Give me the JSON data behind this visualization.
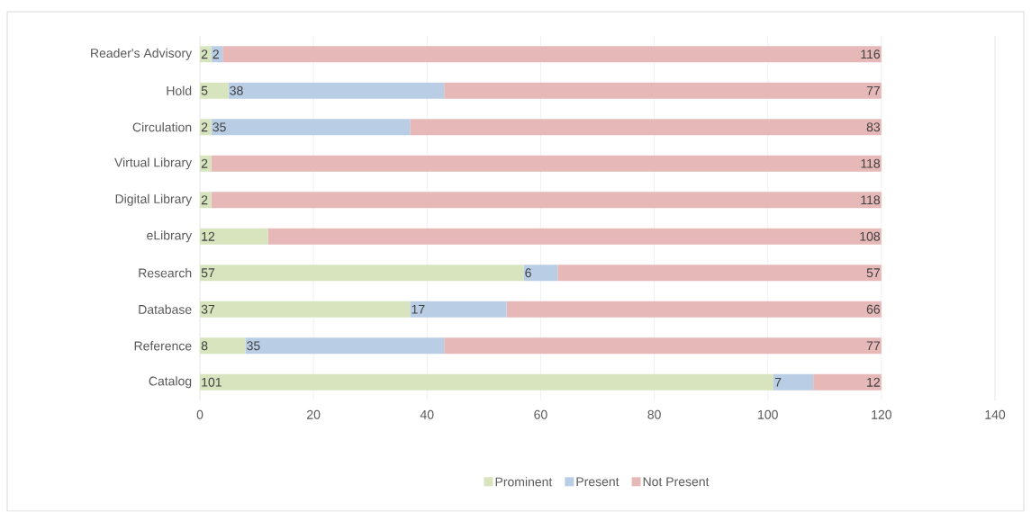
{
  "chart_data": {
    "type": "bar",
    "orientation": "horizontal",
    "stacked": true,
    "categories": [
      "Reader's Advisory",
      "Hold",
      "Circulation",
      "Virtual Library",
      "Digital Library",
      "eLibrary",
      "Research",
      "Database",
      "Reference",
      "Catalog"
    ],
    "series": [
      {
        "name": "Prominent",
        "color": "#d7e4bd",
        "values": [
          2,
          5,
          2,
          2,
          2,
          12,
          57,
          37,
          8,
          101
        ],
        "value_labels": [
          "2",
          "5",
          "2",
          "2",
          "2",
          "12",
          "57",
          "37",
          "8",
          "101"
        ]
      },
      {
        "name": "Present",
        "color": "#b9cde5",
        "values": [
          2,
          38,
          35,
          0,
          0,
          0,
          6,
          17,
          35,
          7
        ],
        "value_labels": [
          "2",
          "38",
          "35",
          null,
          null,
          null,
          "6",
          "17",
          "35",
          "7"
        ]
      },
      {
        "name": "Not Present",
        "color": "#e6b9b8",
        "values": [
          116,
          77,
          83,
          118,
          118,
          108,
          57,
          66,
          77,
          12
        ],
        "value_labels": [
          "116",
          "77",
          "83",
          "118",
          "118",
          "108",
          "57",
          "66",
          "77",
          "12"
        ]
      }
    ],
    "xlim": [
      0,
      140
    ],
    "xticks": [
      0,
      20,
      40,
      60,
      80,
      100,
      120,
      140
    ],
    "grid": "x",
    "legend": "bottom"
  }
}
